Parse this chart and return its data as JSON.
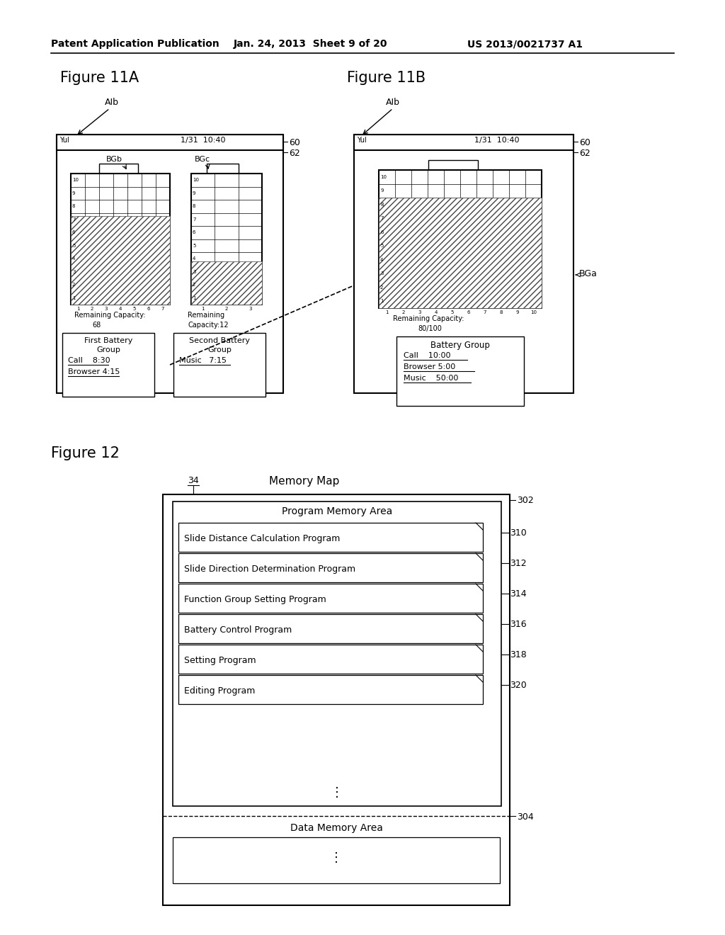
{
  "bg_color": "#ffffff",
  "header_text1": "Patent Application Publication",
  "header_text2": "Jan. 24, 2013  Sheet 9 of 20",
  "header_text3": "US 2013/0021737 A1",
  "fig11a_title": "Figure 11A",
  "fig11b_title": "Figure 11B",
  "fig12_title": "Figure 12",
  "fig12_memory_title": "Memory Map",
  "fig12_label_34": "34",
  "fig12_label_302": "302",
  "fig12_label_304": "304",
  "fig12_label_310": "310",
  "fig12_label_312": "312",
  "fig12_label_314": "314",
  "fig12_label_316": "316",
  "fig12_label_318": "318",
  "fig12_label_320": "320",
  "fig12_program_area": "Program Memory Area",
  "fig12_data_area": "Data Memory Area",
  "fig12_programs": [
    "Slide Distance Calculation Program",
    "Slide Direction Determination Program",
    "Function Group Setting Program",
    "Battery Control Program",
    "Setting Program",
    "Editing Program"
  ],
  "fig11a_label_AIb": "AIb",
  "fig11a_label_BGb": "BGb",
  "fig11a_label_BGc": "BGc",
  "fig11a_status_bar": "1/31  10:40",
  "fig11a_rc1": "Remaining Capacity:",
  "fig11a_rc1_val": "68",
  "fig11a_rc2": "Remaining",
  "fig11a_rc2b": "Capacity:12",
  "fig11a_box1_title": "First Battery",
  "fig11a_box1_line2": "Group",
  "fig11a_box1_line3": "Call    8:30",
  "fig11a_box1_line4": "Browser 4:15",
  "fig11a_box2_title": "Second Battery",
  "fig11a_box2_line2": "Group",
  "fig11a_box2_line3": "Music   7:15",
  "fig11a_label_60": "60",
  "fig11a_label_62": "62",
  "fig11b_label_AIb": "AIb",
  "fig11b_label_BGa": "BGa",
  "fig11b_status_bar": "1/31  10:40",
  "fig11b_rc": "Remaining Capacity:",
  "fig11b_rc_val": "80/100",
  "fig11b_box_title": "Battery Group",
  "fig11b_box_line2": "Call    10:00",
  "fig11b_box_line3": "Browser 5:00",
  "fig11b_box_line4": "Music    50:00",
  "fig11b_label_60": "60",
  "fig11b_label_62": "62"
}
